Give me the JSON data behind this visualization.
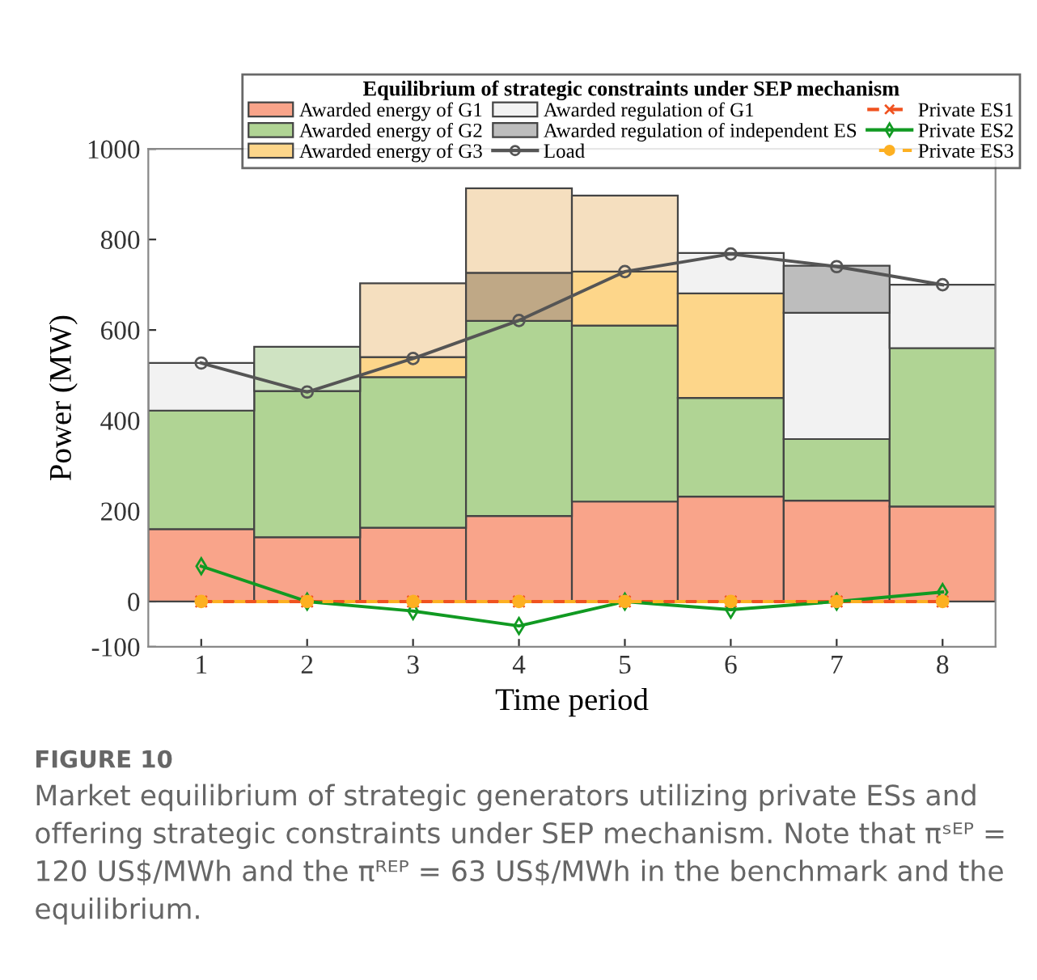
{
  "chart_data": {
    "type": "bar",
    "legend_title": "Equilibrium of strategic constraints under SEP mechanism",
    "xlabel": "Time period",
    "ylabel": "Power (MW)",
    "categories": [
      "1",
      "2",
      "3",
      "4",
      "5",
      "6",
      "7",
      "8"
    ],
    "series": [
      {
        "name": "Awarded energy of G1",
        "color": "#f9a48a",
        "base": [
          0,
          0,
          0,
          0,
          0,
          0,
          0,
          0
        ],
        "values": [
          160,
          142,
          163,
          189,
          221,
          232,
          223,
          210
        ]
      },
      {
        "name": "Awarded energy of G2",
        "color": "#b0d494",
        "base": [
          160,
          142,
          163,
          189,
          221,
          232,
          223,
          210
        ],
        "values": [
          262,
          323,
          333,
          431,
          389,
          218,
          136,
          350
        ]
      },
      {
        "name": "Awarded energy of G3",
        "color": "#fdd68a",
        "base": [
          null,
          null,
          496,
          null,
          610,
          450,
          null,
          null
        ],
        "values": [
          null,
          null,
          44,
          null,
          119,
          231,
          null,
          null
        ]
      },
      {
        "name": "Awarded regulation of G1",
        "color": "#f2f2f2",
        "colors": [
          "#f2f2f2",
          "#cfe3c2",
          "#f5dfbf",
          "#f5dfbf",
          "#f5dfbf",
          "#f2f2f2",
          "#f2f2f2",
          "#f2f2f2"
        ],
        "base": [
          422,
          465,
          540,
          726,
          729,
          681,
          359,
          560
        ],
        "values": [
          105,
          98,
          163,
          187,
          168,
          89,
          279,
          140
        ]
      },
      {
        "name": "Awarded regulation of independent ES",
        "color": "#bdbdbd",
        "colors": [
          null,
          null,
          null,
          "#bfa886",
          null,
          null,
          "#bdbdbd",
          null
        ],
        "base": [
          null,
          null,
          null,
          620,
          null,
          null,
          638,
          null
        ],
        "values": [
          null,
          null,
          null,
          106,
          null,
          null,
          104,
          null
        ]
      },
      {
        "name": "Load",
        "type": "line",
        "color": "#555555",
        "marker": "circle",
        "line_style": "solid",
        "values": [
          527,
          463,
          537,
          621,
          729,
          768,
          740,
          700
        ]
      },
      {
        "name": "Private ES1",
        "type": "line",
        "color": "#f0521f",
        "marker": "cross",
        "line_style": "dashed",
        "values": [
          0,
          0,
          0,
          0,
          0,
          0,
          0,
          0
        ]
      },
      {
        "name": "Private ES2",
        "type": "line",
        "color": "#119a22",
        "marker": "diamond",
        "line_style": "solid",
        "values": [
          78,
          0,
          -21,
          -54,
          0,
          -18,
          0,
          21
        ]
      },
      {
        "name": "Private ES3",
        "type": "line",
        "color": "#fdb022",
        "marker": "circle",
        "line_style": "dashed",
        "values": [
          0,
          0,
          0,
          0,
          0,
          0,
          0,
          0
        ]
      }
    ],
    "ylim": [
      -100,
      1000
    ],
    "yticks": [
      -100,
      0,
      200,
      400,
      600,
      800,
      1000
    ],
    "grid": false,
    "legend": "top",
    "annotations": [
      "FIGURE 10",
      "Market equilibrium of strategic generators utilizing private ESs and offering strategic constraints under SEP mechanism. Note that πˢᴱᴾ = 120 US$/MWh and the πᴿᴱᴾ = 63 US$/MWh in the benchmark and the equilibrium."
    ]
  }
}
